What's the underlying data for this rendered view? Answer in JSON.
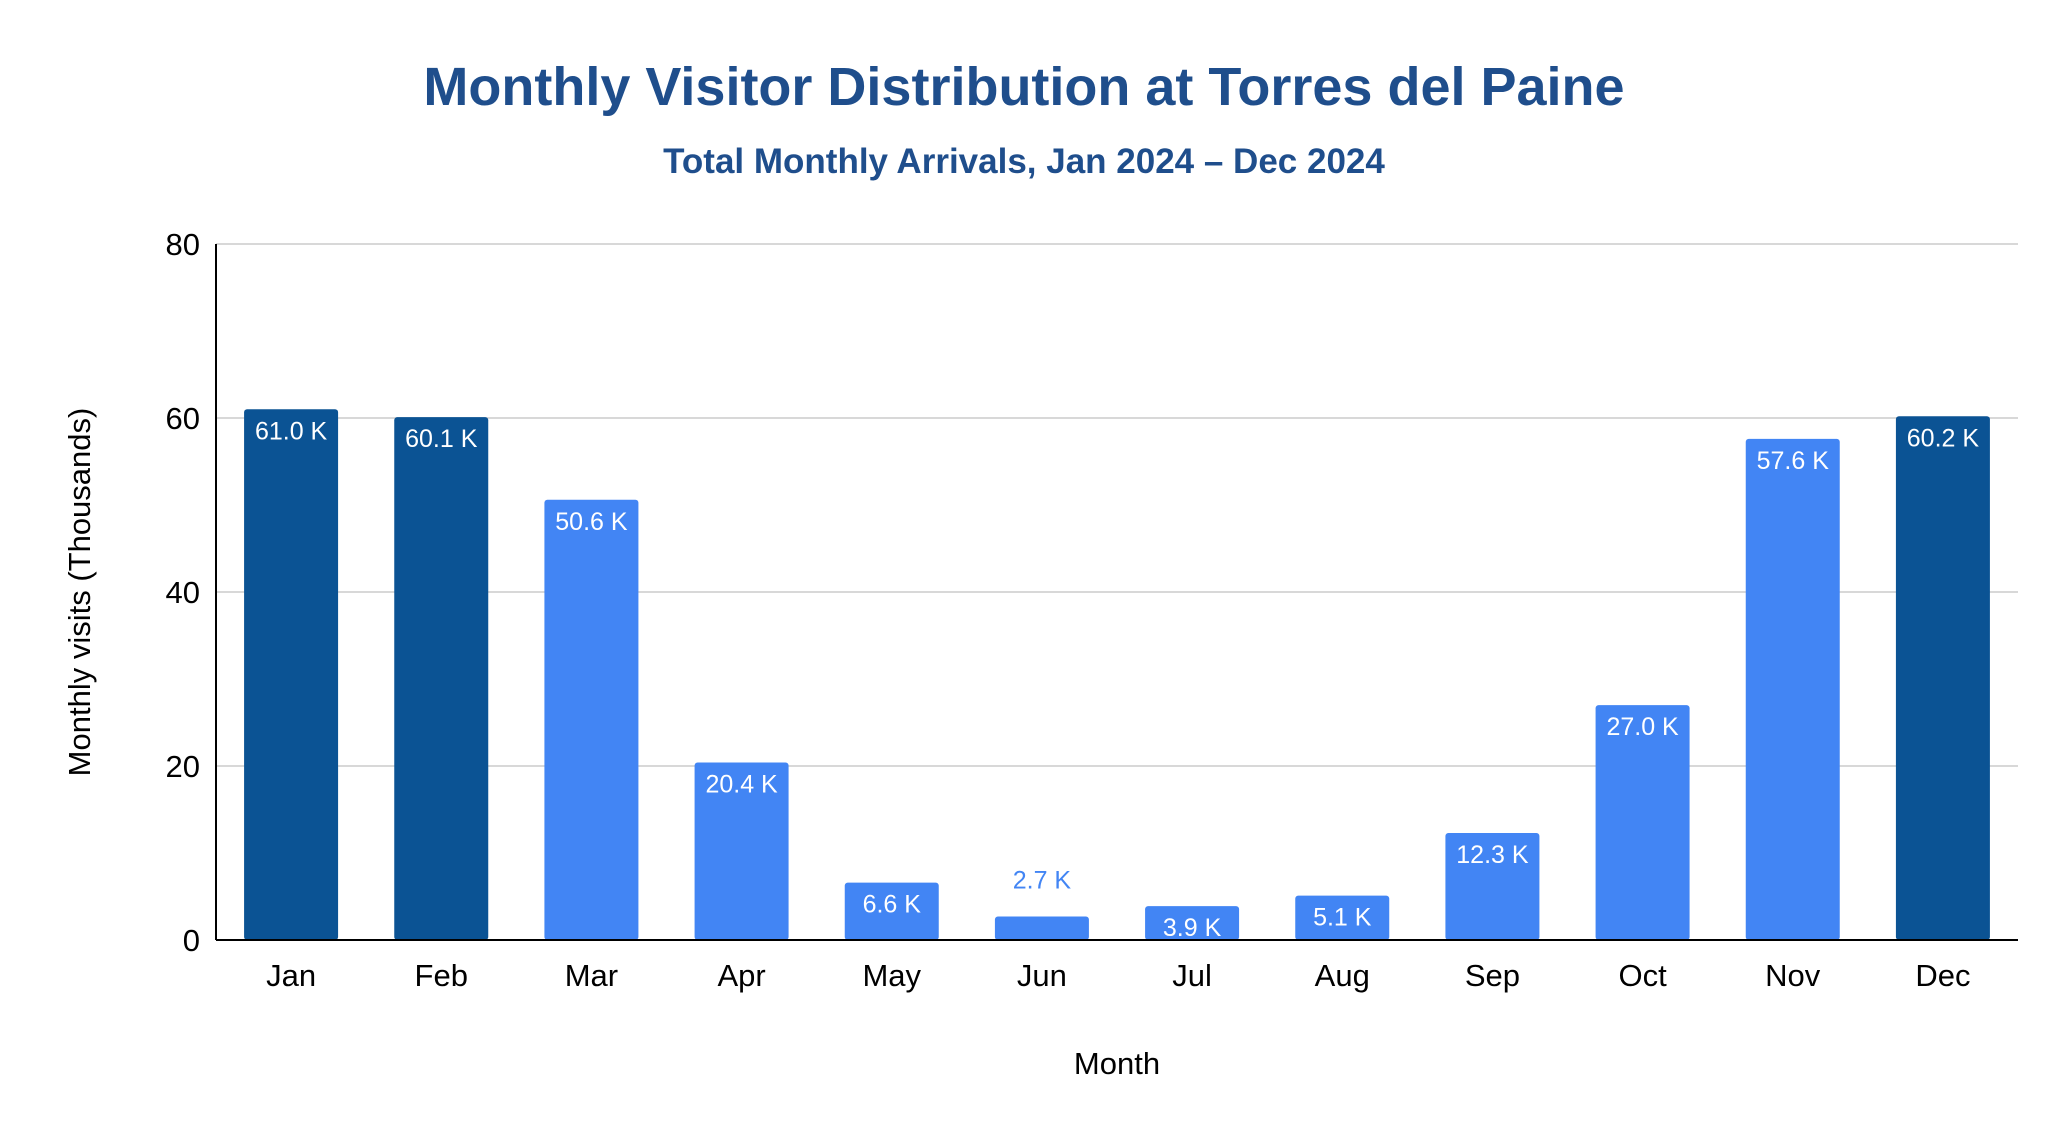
{
  "chart_data": {
    "type": "bar",
    "title": "Monthly Visitor Distribution at Torres del Paine",
    "subtitle": "Total Monthly Arrivals, Jan 2024 – Dec 2024",
    "xlabel": "Month",
    "ylabel": "Monthly visits (Thousands)",
    "ylim": [
      0,
      80
    ],
    "yticks": [
      "0",
      "20",
      "40",
      "60",
      "80"
    ],
    "grid": true,
    "categories": [
      "Jan",
      "Feb",
      "Mar",
      "Apr",
      "May",
      "Jun",
      "Jul",
      "Aug",
      "Sep",
      "Oct",
      "Nov",
      "Dec"
    ],
    "values": [
      61.0,
      60.1,
      50.6,
      20.4,
      6.6,
      2.7,
      3.9,
      5.1,
      12.3,
      27.0,
      57.6,
      60.2
    ],
    "data_labels": [
      "61.0 K",
      "60.1 K",
      "50.6 K",
      "20.4 K",
      "6.6 K",
      "2.7 K",
      "3.9 K",
      "5.1 K",
      "12.3 K",
      "27.0 K",
      "57.6 K",
      "60.2 K"
    ],
    "colors": {
      "peak": "#0b5394",
      "regular": "#4285f4",
      "label_inside": "#ffffff",
      "label_outside": "#4285f4",
      "grid": "#cccccc",
      "axis": "#000000"
    },
    "highlighted": [
      "Jan",
      "Feb",
      "Dec"
    ]
  }
}
